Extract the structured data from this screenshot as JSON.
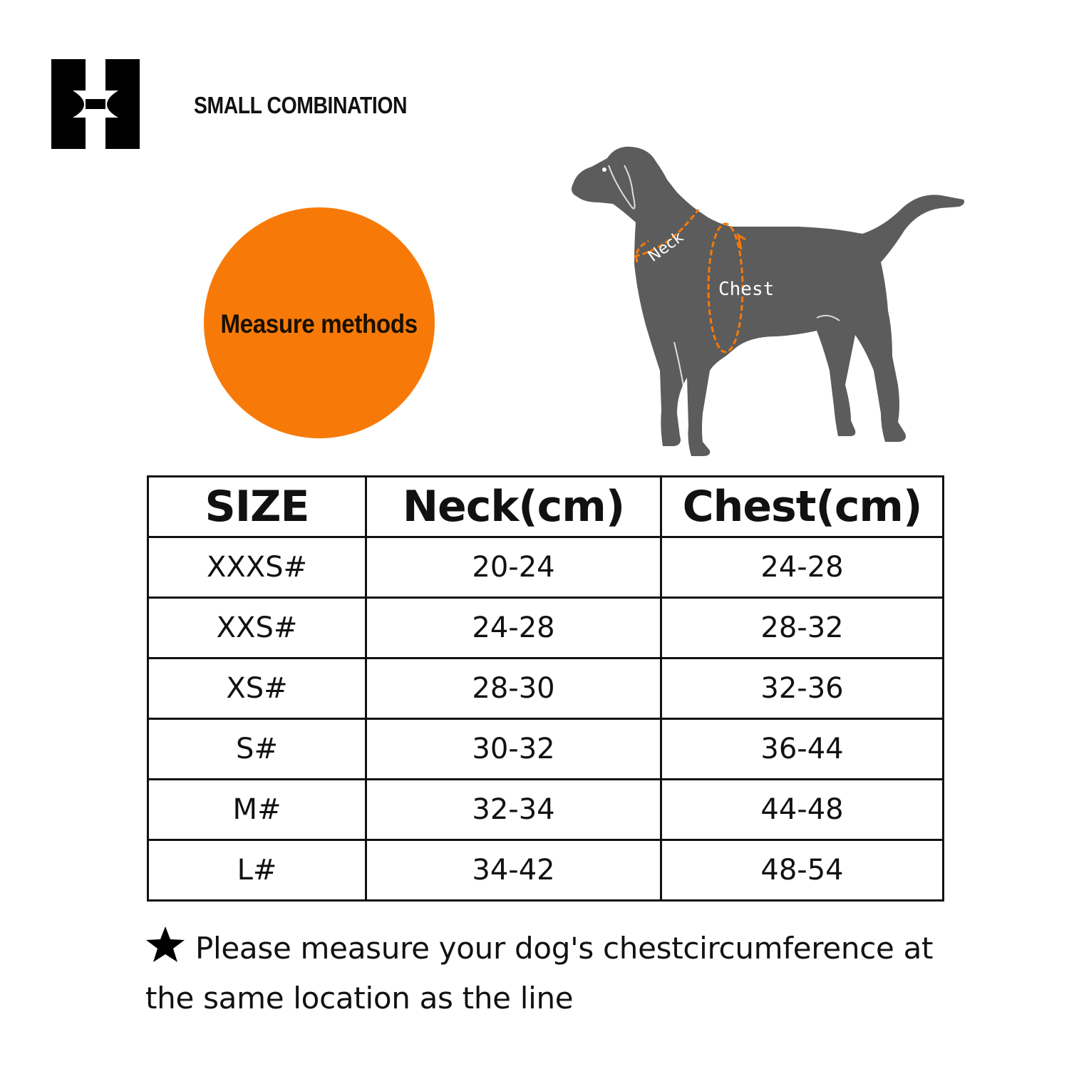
{
  "brand": {
    "name": "SMALL COMBINATION"
  },
  "measure": {
    "label": "Measure methods",
    "color": "#f77a08"
  },
  "diagram": {
    "neck_label": "Neck",
    "chest_label": "Chest",
    "dog_color": "#5c5c5c",
    "line_color": "#f77a08"
  },
  "table": {
    "headers": [
      "SIZE",
      "Neck(cm)",
      "Chest(cm)"
    ],
    "rows": [
      [
        "XXXS#",
        "20-24",
        "24-28"
      ],
      [
        "XXS#",
        "24-28",
        "28-32"
      ],
      [
        "XS#",
        "28-30",
        "32-36"
      ],
      [
        "S#",
        "30-32",
        "36-44"
      ],
      [
        "M#",
        "32-34",
        "44-48"
      ],
      [
        "L#",
        "34-42",
        "48-54"
      ]
    ]
  },
  "note": {
    "icon": "star-icon",
    "text": "Please measure your dog's chestcircumference at the same location as the line"
  }
}
